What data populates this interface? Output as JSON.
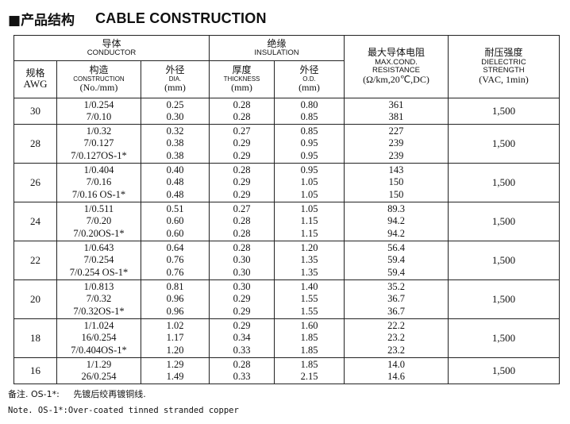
{
  "heading": {
    "marker": "■",
    "title_cn": "产品结构",
    "title_en": "CABLE CONSTRUCTION"
  },
  "table": {
    "headers": {
      "conductor_cn": "导体",
      "conductor_en": "CONDUCTOR",
      "insulation_cn": "绝缘",
      "insulation_en": "INSULATION",
      "resistance_cn": "最大导体电阻",
      "resistance_en1": "MAX.COND.",
      "resistance_en2": "RESISTANCE",
      "resistance_unit": "(Ω/km,20℃,DC)",
      "dielectric_cn": "耐压强度",
      "dielectric_en1": "DIELECTRIC",
      "dielectric_en2": "STRENGTH",
      "dielectric_unit": "(VAC, 1min)",
      "awg_cn": "规格",
      "awg_en": "AWG",
      "construction_cn": "构造",
      "construction_en": "CONSTRUCTION",
      "construction_unit": "(No./mm)",
      "dia_cn": "外径",
      "dia_en": "DIA.",
      "dia_unit": "(mm)",
      "thickness_cn": "厚度",
      "thickness_en": "THICKNESS",
      "thickness_unit": "(mm)",
      "od_cn": "外径",
      "od_en": "O.D.",
      "od_unit": "(mm)"
    },
    "rows": [
      {
        "awg": "30",
        "construction": [
          "1/0.254",
          "7/0.10"
        ],
        "dia": [
          "0.25",
          "0.30"
        ],
        "thickness": [
          "0.28",
          "0.28"
        ],
        "od": [
          "0.80",
          "0.85"
        ],
        "resistance": [
          "361",
          "381"
        ],
        "dielectric": "1,500"
      },
      {
        "awg": "28",
        "construction": [
          "1/0.32",
          "7/0.127",
          "7/0.127OS-1*"
        ],
        "dia": [
          "0.32",
          "0.38",
          "0.38"
        ],
        "thickness": [
          "0.27",
          "0.29",
          "0.29"
        ],
        "od": [
          "0.85",
          "0.95",
          "0.95"
        ],
        "resistance": [
          "227",
          "239",
          "239"
        ],
        "dielectric": "1,500"
      },
      {
        "awg": "26",
        "construction": [
          "1/0.404",
          "7/0.16",
          "7/0.16 OS-1*"
        ],
        "dia": [
          "0.40",
          "0.48",
          "0.48"
        ],
        "thickness": [
          "0.28",
          "0.29",
          "0.29"
        ],
        "od": [
          "0.95",
          "1.05",
          "1.05"
        ],
        "resistance": [
          "143",
          "150",
          "150"
        ],
        "dielectric": "1,500"
      },
      {
        "awg": "24",
        "construction": [
          "1/0.511",
          "7/0.20",
          "7/0.20OS-1*"
        ],
        "dia": [
          "0.51",
          "0.60",
          "0.60"
        ],
        "thickness": [
          "0.27",
          "0.28",
          "0.28"
        ],
        "od": [
          "1.05",
          "1.15",
          "1.15"
        ],
        "resistance": [
          "89.3",
          "94.2",
          "94.2"
        ],
        "dielectric": "1,500"
      },
      {
        "awg": "22",
        "construction": [
          "1/0.643",
          "7/0.254",
          "7/0.254 OS-1*"
        ],
        "dia": [
          "0.64",
          "0.76",
          "0.76"
        ],
        "thickness": [
          "0.28",
          "0.30",
          "0.30"
        ],
        "od": [
          "1.20",
          "1.35",
          "1.35"
        ],
        "resistance": [
          "56.4",
          "59.4",
          "59.4"
        ],
        "dielectric": "1,500"
      },
      {
        "awg": "20",
        "construction": [
          "1/0.813",
          "7/0.32",
          "7/0.32OS-1*"
        ],
        "dia": [
          "0.81",
          "0.96",
          "0.96"
        ],
        "thickness": [
          "0.30",
          "0.29",
          "0.29"
        ],
        "od": [
          "1.40",
          "1.55",
          "1.55"
        ],
        "resistance": [
          "35.2",
          "36.7",
          "36.7"
        ],
        "dielectric": "1,500"
      },
      {
        "awg": "18",
        "construction": [
          "1/1.024",
          "16/0.254",
          "7/0.404OS-1*"
        ],
        "dia": [
          "1.02",
          "1.17",
          "1.20"
        ],
        "thickness": [
          "0.29",
          "0.34",
          "0.33"
        ],
        "od": [
          "1.60",
          "1.85",
          "1.85"
        ],
        "resistance": [
          "22.2",
          "23.2",
          "23.2"
        ],
        "dielectric": "1,500"
      },
      {
        "awg": "16",
        "construction": [
          "1/1.29",
          "26/0.254"
        ],
        "dia": [
          "1.29",
          "1.49"
        ],
        "thickness": [
          "0.28",
          "0.33"
        ],
        "od": [
          "1.85",
          "2.15"
        ],
        "resistance": [
          "14.0",
          "14.6"
        ],
        "dielectric": "1,500"
      }
    ]
  },
  "notes": {
    "cn_label": "备注. OS-1*:",
    "cn_text": "先镀后绞再镀铜线.",
    "en": "Note. OS-1*:Over-coated tinned stranded copper"
  }
}
